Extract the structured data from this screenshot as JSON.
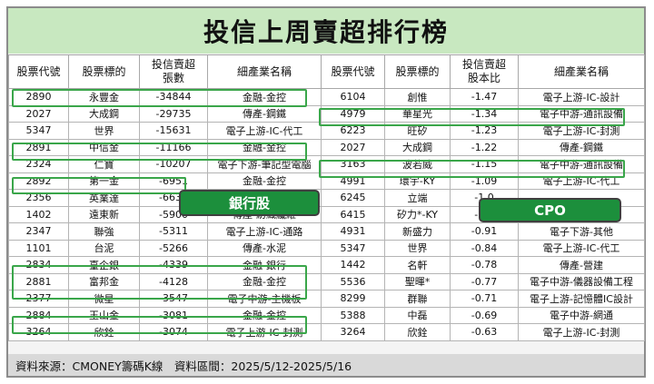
{
  "title": "投信上周賣超排行榜",
  "headers": [
    "股票代號",
    "股票標的",
    "投信賣超\n張數",
    "細產業名稱",
    "股票代號",
    "股票標的",
    "投信賣超\n股本比",
    "細產業名稱"
  ],
  "rows": [
    [
      "2890",
      "永豐金",
      "-34844",
      "金融-金控",
      "6104",
      "創惟",
      "-1.47",
      "電子上游-IC-設計"
    ],
    [
      "2027",
      "大成鋼",
      "-29735",
      "傳產-鋼鐵",
      "4979",
      "華星光",
      "-1.34",
      "電子中游-通訊設備"
    ],
    [
      "5347",
      "世界",
      "-15631",
      "電子上游-IC-代工",
      "6223",
      "旺矽",
      "-1.23",
      "電子上游-IC-封測"
    ],
    [
      "2891",
      "中信金",
      "-11166",
      "金融-金控",
      "2027",
      "大成鋼",
      "-1.22",
      "傳產-鋼鐵"
    ],
    [
      "2324",
      "仁寶",
      "-10207",
      "電子下游-筆記型電腦",
      "3163",
      "波若威",
      "-1.15",
      "電子中游-通訊設備"
    ],
    [
      "2892",
      "第一金",
      "-6951",
      "金融-金控",
      "4991",
      "環宇-KY",
      "-1.09",
      "電子上游-IC-代工"
    ],
    [
      "2356",
      "英業達",
      "-6636",
      "",
      "6245",
      "立端",
      "-1.0",
      ""
    ],
    [
      "1402",
      "遠東新",
      "-5900",
      "傳產-紡織纖維",
      "6415",
      "矽力*-KY",
      "-0.9",
      "電子上游-IC-設計"
    ],
    [
      "2347",
      "聯強",
      "-5311",
      "電子上游-IC-通路",
      "4931",
      "新盛力",
      "-0.91",
      "電子下游-其他"
    ],
    [
      "1101",
      "台泥",
      "-5266",
      "傳產-水泥",
      "5347",
      "世界",
      "-0.84",
      "電子上游-IC-代工"
    ],
    [
      "2834",
      "臺企銀",
      "-4339",
      "金融-銀行",
      "1442",
      "名軒",
      "-0.78",
      "傳產-營建"
    ],
    [
      "2881",
      "富邦金",
      "-4128",
      "金融-金控",
      "5536",
      "聖暉*",
      "-0.77",
      "電子中游-儀器設備工程"
    ],
    [
      "2377",
      "微星",
      "-3547",
      "電子中游-主機板",
      "8299",
      "群聯",
      "-0.71",
      "電子上游-記憶體IC設計"
    ],
    [
      "2884",
      "玉山金",
      "-3081",
      "金融-金控",
      "5388",
      "中磊",
      "-0.69",
      "電子中游-網通"
    ],
    [
      "3264",
      "欣銓",
      "-3074",
      "電子上游-IC-封測",
      "3264",
      "欣銓",
      "-0.63",
      "電子上游-IC-封測"
    ]
  ],
  "badges": {
    "bank": "銀行股",
    "cpo": "CPO"
  },
  "footer": "資料來源：CMONEY籌碼K線　資料區間：2025/5/12-2025/5/16",
  "colors": {
    "title_bg": "#c8e8c0",
    "highlight": "#3aa64a",
    "badge_bg": "#1c8f3c",
    "footer_bg": "#d9d9d9"
  }
}
